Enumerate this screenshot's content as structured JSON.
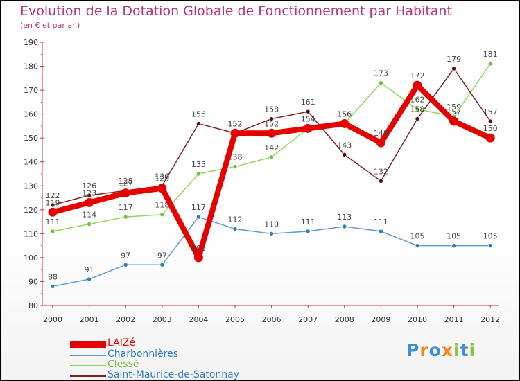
{
  "header": {
    "title": "Evolution de la Dotation Globale de Fonctionnement par Habitant",
    "subtitle": "(en € et par an)"
  },
  "chart_data": {
    "type": "line",
    "title": "Evolution de la Dotation Globale de Fonctionnement par Habitant",
    "subtitle": "(en € et par an)",
    "xlabel": "",
    "ylabel": "",
    "ylim": [
      80,
      190
    ],
    "yticks": [
      80,
      90,
      100,
      110,
      120,
      130,
      140,
      150,
      160,
      170,
      180,
      190
    ],
    "categories": [
      "2000",
      "2001",
      "2002",
      "2003",
      "2004",
      "2005",
      "2006",
      "2007",
      "2008",
      "2009",
      "2010",
      "2011",
      "2012"
    ],
    "grid": "none",
    "legend_position": "bottom-left",
    "series": [
      {
        "name": "Charbonnières",
        "color": "#5b9bd0",
        "marker": "#2e7cc0",
        "emphasis": false,
        "values": [
          88,
          91,
          97,
          97,
          117,
          112,
          110,
          111,
          113,
          111,
          105,
          105,
          105
        ]
      },
      {
        "name": "Clessé",
        "color": "#8cd95a",
        "marker": "#6cc23a",
        "emphasis": false,
        "values": [
          111,
          114,
          117,
          118,
          135,
          138,
          142,
          154,
          156,
          173,
          162,
          159,
          181
        ]
      },
      {
        "name": "Saint-Maurice-de-Satonnay",
        "color": "#7a2020",
        "marker": "#5a0f0f",
        "emphasis": false,
        "values": [
          122,
          126,
          128,
          130,
          156,
          152,
          158,
          161,
          143,
          132,
          158,
          179,
          157
        ]
      },
      {
        "name": "LAIZé",
        "color": "#e60000",
        "marker": "#cc0000",
        "emphasis": true,
        "values": [
          119,
          123,
          127,
          129,
          100,
          152,
          152,
          154,
          156,
          148,
          172,
          157,
          150
        ]
      }
    ],
    "legend_order": [
      "LAIZé",
      "Charbonnières",
      "Clessé",
      "Saint-Maurice-de-Satonnay"
    ]
  },
  "logo": {
    "letters": [
      "P",
      "r",
      "o",
      "x",
      "i",
      "t",
      "i"
    ],
    "colors": [
      "#3a8fd9",
      "#f08a1c",
      "#3a8fd9",
      "#f08a1c",
      "#88c540",
      "#3a8fd9",
      "#88c540"
    ]
  }
}
